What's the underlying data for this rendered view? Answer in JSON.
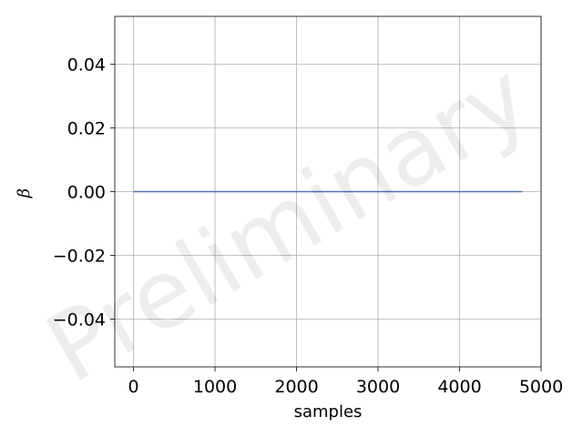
{
  "chart_data": {
    "type": "line",
    "title": "",
    "xlabel": "samples",
    "ylabel": "β",
    "xlim": [
      -230,
      5000
    ],
    "ylim": [
      -0.055,
      0.055
    ],
    "x_ticks": [
      0,
      1000,
      2000,
      3000,
      4000,
      5000
    ],
    "x_tick_labels": [
      "0",
      "1000",
      "2000",
      "3000",
      "4000",
      "5000"
    ],
    "y_ticks": [
      -0.04,
      -0.02,
      0.0,
      0.02,
      0.04
    ],
    "y_tick_labels": [
      "−0.04",
      "−0.02",
      "0.00",
      "0.02",
      "0.04"
    ],
    "grid": true,
    "series": [
      {
        "color": "#4c72b0",
        "x": [
          0,
          4770
        ],
        "y": [
          0.0,
          0.0
        ]
      }
    ],
    "watermark": "Preliminary"
  }
}
